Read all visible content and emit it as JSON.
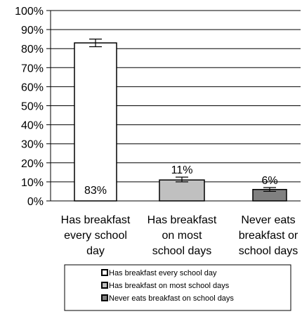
{
  "chart_data": {
    "type": "bar",
    "categories": [
      [
        "Has breakfast",
        "every school",
        "day"
      ],
      [
        "Has breakfast",
        "on most",
        "school days"
      ],
      [
        "Never eats",
        "breakfast or",
        "school days"
      ]
    ],
    "values": [
      83,
      11,
      6
    ],
    "error_bars": [
      [
        81,
        85
      ],
      [
        10,
        12.5
      ],
      [
        5,
        7
      ]
    ],
    "data_labels": [
      "83%",
      "11%",
      "6%"
    ],
    "yticks": [
      "0%",
      "10%",
      "20%",
      "30%",
      "40%",
      "50%",
      "60%",
      "70%",
      "80%",
      "90%",
      "100%"
    ],
    "ylim": [
      0,
      100
    ],
    "grid": true,
    "bar_colors": [
      "#ffffff",
      "#c0c0c0",
      "#808080"
    ],
    "legend": {
      "placement": "bottom",
      "entries": [
        "Has breakfast every school day",
        "Has breakfast on most school days",
        "Never eats breakfast on school days"
      ]
    }
  }
}
